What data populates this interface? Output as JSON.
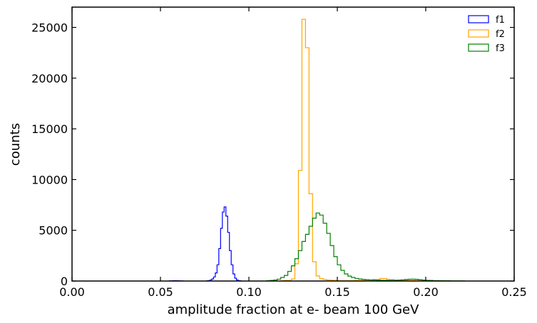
{
  "chart_data": {
    "type": "histogram",
    "title": "",
    "xlabel": "amplitude fraction at e- beam 100 GeV",
    "ylabel": "counts",
    "xlim": [
      0.0,
      0.25
    ],
    "ylim": [
      0,
      27000
    ],
    "xticks": [
      0.0,
      0.05,
      0.1,
      0.15,
      0.2,
      0.25
    ],
    "xtick_labels": [
      "0.00",
      "0.05",
      "0.10",
      "0.15",
      "0.20",
      "0.25"
    ],
    "yticks": [
      0,
      5000,
      10000,
      15000,
      20000,
      25000
    ],
    "ytick_labels": [
      "0",
      "5000",
      "10000",
      "15000",
      "20000",
      "25000"
    ],
    "grid": false,
    "legend_position": "top-right",
    "series": [
      {
        "name": "f1",
        "color": "#0000ff",
        "style": "step",
        "bins": [
          [
            0.055,
            0.057,
            20
          ],
          [
            0.057,
            0.059,
            40
          ],
          [
            0.059,
            0.061,
            30
          ],
          [
            0.061,
            0.063,
            10
          ],
          [
            0.076,
            0.077,
            20
          ],
          [
            0.077,
            0.078,
            50
          ],
          [
            0.078,
            0.079,
            100
          ],
          [
            0.079,
            0.08,
            200
          ],
          [
            0.08,
            0.081,
            400
          ],
          [
            0.081,
            0.082,
            800
          ],
          [
            0.082,
            0.083,
            1600
          ],
          [
            0.083,
            0.084,
            3200
          ],
          [
            0.084,
            0.085,
            5200
          ],
          [
            0.085,
            0.086,
            6800
          ],
          [
            0.086,
            0.087,
            7300
          ],
          [
            0.087,
            0.088,
            6400
          ],
          [
            0.088,
            0.089,
            4800
          ],
          [
            0.089,
            0.09,
            3000
          ],
          [
            0.09,
            0.091,
            1600
          ],
          [
            0.091,
            0.092,
            700
          ],
          [
            0.092,
            0.093,
            280
          ],
          [
            0.093,
            0.094,
            100
          ],
          [
            0.094,
            0.095,
            40
          ],
          [
            0.095,
            0.096,
            15
          ]
        ]
      },
      {
        "name": "f2",
        "color": "#ffa500",
        "style": "step",
        "bins": [
          [
            0.118,
            0.12,
            40
          ],
          [
            0.12,
            0.122,
            60
          ],
          [
            0.122,
            0.124,
            60
          ],
          [
            0.124,
            0.126,
            200
          ],
          [
            0.126,
            0.128,
            1700
          ],
          [
            0.128,
            0.13,
            10900
          ],
          [
            0.13,
            0.132,
            25800
          ],
          [
            0.132,
            0.134,
            23000
          ],
          [
            0.134,
            0.136,
            8600
          ],
          [
            0.136,
            0.138,
            1900
          ],
          [
            0.138,
            0.14,
            500
          ],
          [
            0.14,
            0.142,
            250
          ],
          [
            0.142,
            0.144,
            150
          ],
          [
            0.144,
            0.146,
            100
          ],
          [
            0.146,
            0.148,
            80
          ],
          [
            0.148,
            0.15,
            60
          ],
          [
            0.15,
            0.16,
            40
          ],
          [
            0.16,
            0.166,
            60
          ],
          [
            0.166,
            0.17,
            100
          ],
          [
            0.17,
            0.174,
            150
          ],
          [
            0.174,
            0.178,
            250
          ],
          [
            0.178,
            0.182,
            150
          ],
          [
            0.182,
            0.186,
            100
          ],
          [
            0.186,
            0.19,
            60
          ],
          [
            0.19,
            0.194,
            80
          ],
          [
            0.194,
            0.198,
            100
          ],
          [
            0.198,
            0.202,
            70
          ],
          [
            0.202,
            0.21,
            40
          ]
        ]
      },
      {
        "name": "f3",
        "color": "#008000",
        "style": "step",
        "bins": [
          [
            0.11,
            0.112,
            30
          ],
          [
            0.112,
            0.114,
            60
          ],
          [
            0.114,
            0.116,
            100
          ],
          [
            0.116,
            0.118,
            180
          ],
          [
            0.118,
            0.12,
            350
          ],
          [
            0.12,
            0.122,
            550
          ],
          [
            0.122,
            0.124,
            950
          ],
          [
            0.124,
            0.126,
            1500
          ],
          [
            0.126,
            0.128,
            2200
          ],
          [
            0.128,
            0.13,
            3000
          ],
          [
            0.13,
            0.132,
            3900
          ],
          [
            0.132,
            0.134,
            4600
          ],
          [
            0.134,
            0.136,
            5400
          ],
          [
            0.136,
            0.138,
            6200
          ],
          [
            0.138,
            0.14,
            6700
          ],
          [
            0.14,
            0.142,
            6500
          ],
          [
            0.142,
            0.144,
            5700
          ],
          [
            0.144,
            0.146,
            4700
          ],
          [
            0.146,
            0.148,
            3500
          ],
          [
            0.148,
            0.15,
            2400
          ],
          [
            0.15,
            0.152,
            1600
          ],
          [
            0.152,
            0.154,
            1050
          ],
          [
            0.154,
            0.156,
            700
          ],
          [
            0.156,
            0.158,
            480
          ],
          [
            0.158,
            0.16,
            350
          ],
          [
            0.16,
            0.162,
            260
          ],
          [
            0.162,
            0.164,
            200
          ],
          [
            0.164,
            0.166,
            160
          ],
          [
            0.166,
            0.168,
            130
          ],
          [
            0.168,
            0.17,
            110
          ],
          [
            0.17,
            0.172,
            100
          ],
          [
            0.172,
            0.174,
            90
          ],
          [
            0.174,
            0.176,
            80
          ],
          [
            0.176,
            0.178,
            70
          ],
          [
            0.178,
            0.18,
            60
          ],
          [
            0.18,
            0.182,
            60
          ],
          [
            0.182,
            0.184,
            70
          ],
          [
            0.184,
            0.186,
            90
          ],
          [
            0.186,
            0.188,
            120
          ],
          [
            0.188,
            0.19,
            150
          ],
          [
            0.19,
            0.192,
            180
          ],
          [
            0.192,
            0.194,
            190
          ],
          [
            0.194,
            0.196,
            170
          ],
          [
            0.196,
            0.198,
            130
          ],
          [
            0.198,
            0.2,
            90
          ],
          [
            0.2,
            0.204,
            60
          ],
          [
            0.204,
            0.208,
            40
          ],
          [
            0.208,
            0.214,
            25
          ],
          [
            0.214,
            0.222,
            15
          ]
        ]
      }
    ]
  }
}
